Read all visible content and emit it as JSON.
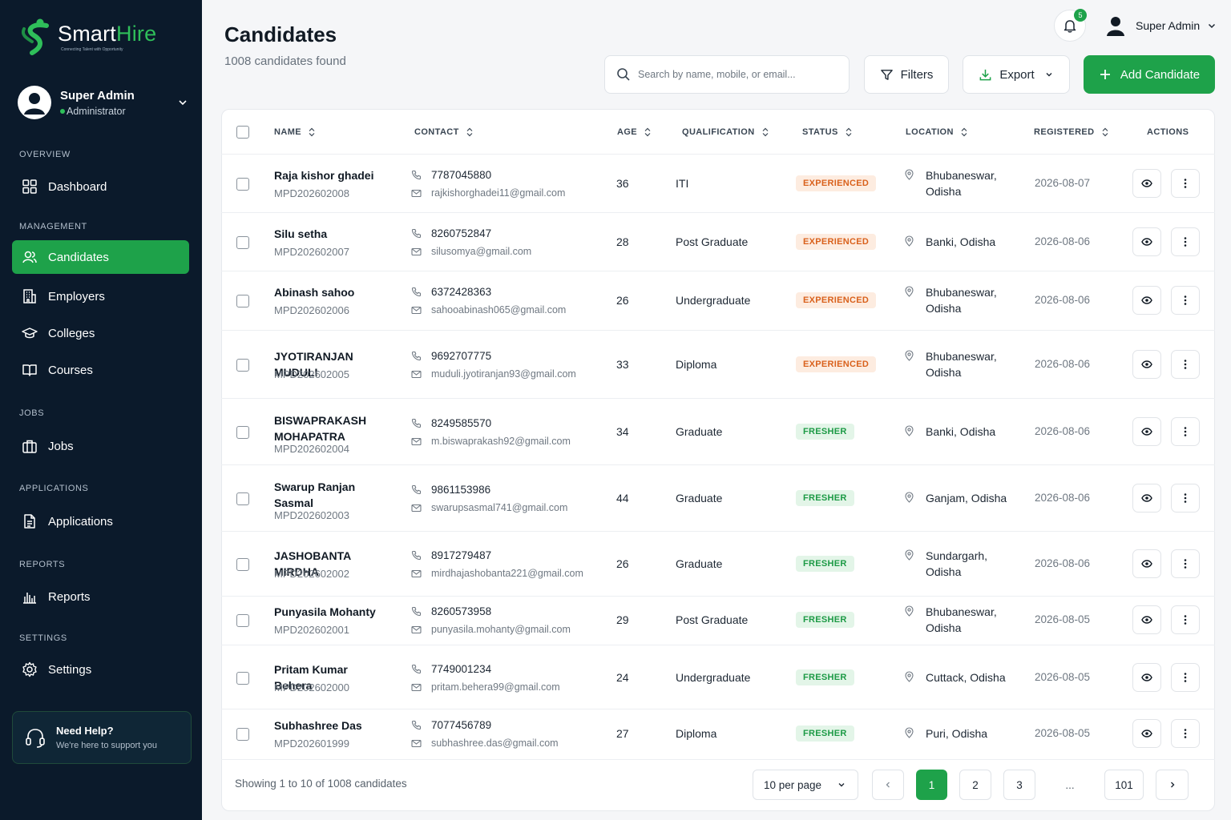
{
  "brand": {
    "name_part1": "Smart",
    "name_part2": "Hire",
    "tagline": "Connecting Talent with Opportunity"
  },
  "sidebar": {
    "user": {
      "name": "Super Admin",
      "role": "Administrator"
    },
    "sections": {
      "overview": "OVERVIEW",
      "management": "MANAGEMENT",
      "jobs": "JOBS",
      "applications": "APPLICATIONS",
      "reports": "REPORTS",
      "settings": "SETTINGS"
    },
    "items": {
      "dashboard": "Dashboard",
      "candidates": "Candidates",
      "employers": "Employers",
      "colleges": "Colleges",
      "courses": "Courses",
      "jobs": "Jobs",
      "applications": "Applications",
      "reports": "Reports",
      "settings": "Settings"
    },
    "help": {
      "title": "Need Help?",
      "subtitle": "We're here to support you"
    }
  },
  "header": {
    "title": "Candidates",
    "subtitle": "1008 candidates found",
    "notifications_count": "5",
    "user_name": "Super Admin",
    "search_placeholder": "Search by name, mobile, or email...",
    "filters_label": "Filters",
    "export_label": "Export",
    "add_label": "Add Candidate"
  },
  "table": {
    "columns": {
      "name": "NAME",
      "contact": "CONTACT",
      "age": "AGE",
      "qualification": "QUALIFICATION",
      "status": "STATUS",
      "location": "LOCATION",
      "registered": "REGISTERED",
      "actions": "ACTIONS"
    },
    "rows": [
      {
        "name": "Raja kishor ghadei",
        "id": "MPD202602008",
        "phone": "7787045880",
        "email": "rajkishorghadei11@gmail.com",
        "age": "36",
        "qualification": "ITI",
        "status": "EXPERIENCED",
        "location": "Bhubaneswar, Odisha",
        "registered": "2026-08-07"
      },
      {
        "name": "Silu setha",
        "id": "MPD202602007",
        "phone": "8260752847",
        "email": "silusomya@gmail.com",
        "age": "28",
        "qualification": "Post Graduate",
        "status": "EXPERIENCED",
        "location": "Banki, Odisha",
        "registered": "2026-08-06"
      },
      {
        "name": "Abinash sahoo",
        "id": "MPD202602006",
        "phone": "6372428363",
        "email": "sahooabinash065@gmail.com",
        "age": "26",
        "qualification": "Undergraduate",
        "status": "EXPERIENCED",
        "location": "Bhubaneswar, Odisha",
        "registered": "2026-08-06"
      },
      {
        "name": "JYOTIRANJAN MUDULI",
        "id": "MPD202602005",
        "phone": "9692707775",
        "email": "muduli.jyotiranjan93@gmail.com",
        "age": "33",
        "qualification": "Diploma",
        "status": "EXPERIENCED",
        "location": "Bhubaneswar, Odisha",
        "registered": "2026-08-06"
      },
      {
        "name": "BISWAPRAKASH MOHAPATRA",
        "id": "MPD202602004",
        "phone": "8249585570",
        "email": "m.biswaprakash92@gmail.com",
        "age": "34",
        "qualification": "Graduate",
        "status": "FRESHER",
        "location": "Banki, Odisha",
        "registered": "2026-08-06"
      },
      {
        "name": "Swarup Ranjan Sasmal",
        "id": "MPD202602003",
        "phone": "9861153986",
        "email": "swarupsasmal741@gmail.com",
        "age": "44",
        "qualification": "Graduate",
        "status": "FRESHER",
        "location": "Ganjam, Odisha",
        "registered": "2026-08-06"
      },
      {
        "name": "JASHOBANTA MIRDHA",
        "id": "MPD202602002",
        "phone": "8917279487",
        "email": "mirdhajashobanta221@gmail.com",
        "age": "26",
        "qualification": "Graduate",
        "status": "FRESHER",
        "location": "Sundargarh, Odisha",
        "registered": "2026-08-06"
      },
      {
        "name": "Punyasila Mohanty",
        "id": "MPD202602001",
        "phone": "8260573958",
        "email": "punyasila.mohanty@gmail.com",
        "age": "29",
        "qualification": "Post Graduate",
        "status": "FRESHER",
        "location": "Bhubaneswar, Odisha",
        "registered": "2026-08-05"
      },
      {
        "name": "Pritam Kumar Behera",
        "id": "MPD202602000",
        "phone": "7749001234",
        "email": "pritam.behera99@gmail.com",
        "age": "24",
        "qualification": "Undergraduate",
        "status": "FRESHER",
        "location": "Cuttack, Odisha",
        "registered": "2026-08-05"
      },
      {
        "name": "Subhashree Das",
        "id": "MPD202601999",
        "phone": "7077456789",
        "email": "subhashree.das@gmail.com",
        "age": "27",
        "qualification": "Diploma",
        "status": "FRESHER",
        "location": "Puri, Odisha",
        "registered": "2026-08-05"
      }
    ]
  },
  "footer": {
    "showing": "Showing 1 to 10 of 1008 candidates",
    "per_page": "10 per page",
    "pages": [
      "1",
      "2",
      "3",
      "...",
      "101"
    ]
  },
  "colors": {
    "accent": "#1ea24a",
    "sidebar_bg": "#0b1a2b",
    "experienced_bg": "#fdece0",
    "experienced_fg": "#d9611c",
    "fresher_bg": "#e3f5e8",
    "fresher_fg": "#1c9a45"
  }
}
